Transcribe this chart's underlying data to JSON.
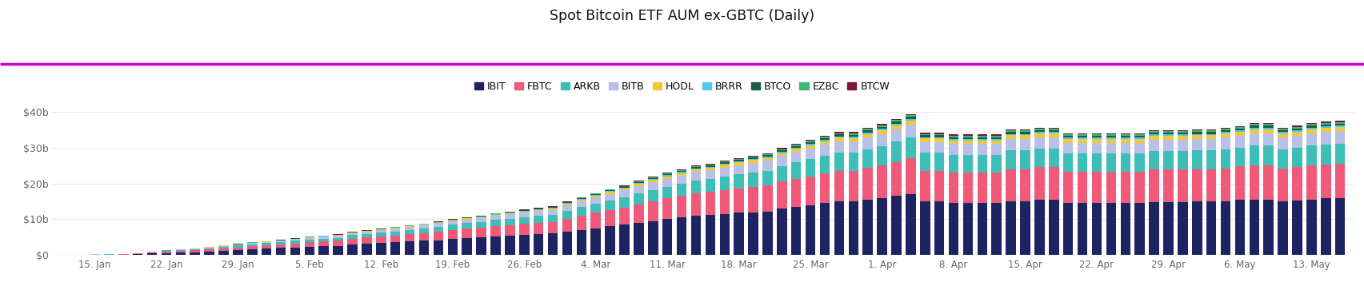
{
  "title": "Spot Bitcoin ETF AUM ex-GBTC (Daily)",
  "background_color": "#ffffff",
  "magenta_line_color": "#cc00cc",
  "series": [
    "IBIT",
    "FBTC",
    "ARKB",
    "BITB",
    "HODL",
    "BRRR",
    "BTCO",
    "EZBC",
    "BTCW"
  ],
  "colors": [
    "#1e2461",
    "#f05a78",
    "#3dbfb8",
    "#b8bfe8",
    "#f0c840",
    "#50c8e8",
    "#1a6040",
    "#40b878",
    "#7a1830"
  ],
  "x_tick_positions": [
    2,
    7,
    12,
    17,
    22,
    27,
    32,
    37,
    42,
    47,
    52,
    57,
    62,
    67,
    72,
    77,
    82,
    87
  ],
  "x_labels": [
    "15. Jan",
    "22. Jan",
    "29. Jan",
    "5. Feb",
    "12. Feb",
    "19. Feb",
    "26. Feb",
    "4. Mar",
    "11. Mar",
    "18. Mar",
    "25. Mar",
    "1. Apr",
    "8. Apr",
    "15. Apr",
    "22. Apr",
    "29. Apr",
    "6. May",
    "13. May"
  ],
  "n_bars": 90,
  "data": {
    "IBIT": [
      0.05,
      0.08,
      0.1,
      0.12,
      0.15,
      0.3,
      0.45,
      0.6,
      0.75,
      0.85,
      1.0,
      1.2,
      1.4,
      1.6,
      1.8,
      2.0,
      2.2,
      2.4,
      2.5,
      2.6,
      3.0,
      3.2,
      3.4,
      3.6,
      3.8,
      4.0,
      4.2,
      4.5,
      4.8,
      5.0,
      5.2,
      5.4,
      5.6,
      5.8,
      6.0,
      6.5,
      7.0,
      7.5,
      8.0,
      8.5,
      9.0,
      9.5,
      10.0,
      10.5,
      11.0,
      11.2,
      11.5,
      11.8,
      12.0,
      12.2,
      13.0,
      13.5,
      14.0,
      14.5,
      15.0,
      15.0,
      15.5,
      16.0,
      16.5,
      17.0,
      15.0,
      15.0,
      14.5,
      14.5,
      14.5,
      14.5,
      15.0,
      15.0,
      15.5,
      15.5,
      14.5,
      14.5,
      14.5,
      14.5,
      14.5,
      14.5,
      14.8,
      14.8,
      14.8,
      15.0,
      15.0,
      15.0,
      15.5,
      15.5,
      15.5,
      15.0,
      15.2,
      15.5,
      15.8,
      16.0
    ],
    "FBTC": [
      0.02,
      0.04,
      0.06,
      0.08,
      0.1,
      0.15,
      0.25,
      0.35,
      0.45,
      0.5,
      0.6,
      0.7,
      0.8,
      0.9,
      1.0,
      1.0,
      1.1,
      1.2,
      1.3,
      1.4,
      1.6,
      1.7,
      1.8,
      1.9,
      2.0,
      2.2,
      2.3,
      2.5,
      2.6,
      2.7,
      2.9,
      3.0,
      3.1,
      3.2,
      3.3,
      3.7,
      4.0,
      4.3,
      4.5,
      4.8,
      5.2,
      5.5,
      5.8,
      6.0,
      6.3,
      6.4,
      6.6,
      6.8,
      7.0,
      7.2,
      7.5,
      7.8,
      8.0,
      8.3,
      8.5,
      8.5,
      8.8,
      9.0,
      9.5,
      10.0,
      8.5,
      8.5,
      8.5,
      8.5,
      8.5,
      8.5,
      9.0,
      9.0,
      9.0,
      9.0,
      8.8,
      8.8,
      8.8,
      8.8,
      8.8,
      8.8,
      9.0,
      9.0,
      9.0,
      9.0,
      9.0,
      9.2,
      9.2,
      9.5,
      9.5,
      9.2,
      9.3,
      9.5,
      9.5,
      9.5
    ],
    "ARKB": [
      0.01,
      0.02,
      0.03,
      0.04,
      0.05,
      0.08,
      0.12,
      0.18,
      0.22,
      0.28,
      0.35,
      0.42,
      0.48,
      0.55,
      0.6,
      0.65,
      0.72,
      0.78,
      0.82,
      0.88,
      1.0,
      1.05,
      1.1,
      1.15,
      1.2,
      1.3,
      1.35,
      1.45,
      1.5,
      1.55,
      1.7,
      1.8,
      1.9,
      1.95,
      2.0,
      2.2,
      2.4,
      2.6,
      2.8,
      2.9,
      3.1,
      3.2,
      3.3,
      3.4,
      3.5,
      3.6,
      3.8,
      3.9,
      4.0,
      4.1,
      4.3,
      4.5,
      4.7,
      4.9,
      5.0,
      5.0,
      5.2,
      5.4,
      5.6,
      5.8,
      5.0,
      5.0,
      5.0,
      5.0,
      5.0,
      5.0,
      5.2,
      5.2,
      5.2,
      5.2,
      5.0,
      5.0,
      5.0,
      5.0,
      5.0,
      5.0,
      5.2,
      5.2,
      5.2,
      5.2,
      5.2,
      5.3,
      5.3,
      5.5,
      5.5,
      5.3,
      5.4,
      5.5,
      5.5,
      5.5
    ],
    "BITB": [
      0.01,
      0.02,
      0.02,
      0.03,
      0.04,
      0.05,
      0.08,
      0.12,
      0.15,
      0.18,
      0.22,
      0.26,
      0.3,
      0.33,
      0.36,
      0.4,
      0.45,
      0.48,
      0.52,
      0.55,
      0.6,
      0.65,
      0.7,
      0.75,
      0.8,
      0.85,
      0.92,
      0.98,
      1.05,
      1.1,
      1.15,
      1.2,
      1.25,
      1.3,
      1.35,
      1.5,
      1.6,
      1.7,
      1.8,
      1.9,
      2.0,
      2.1,
      2.2,
      2.3,
      2.4,
      2.4,
      2.5,
      2.6,
      2.7,
      2.8,
      2.8,
      2.9,
      3.0,
      3.1,
      3.2,
      3.2,
      3.3,
      3.4,
      3.5,
      3.6,
      3.0,
      3.0,
      3.0,
      3.0,
      3.0,
      3.0,
      3.2,
      3.2,
      3.2,
      3.2,
      3.0,
      3.0,
      3.0,
      3.0,
      3.0,
      3.0,
      3.2,
      3.2,
      3.2,
      3.2,
      3.2,
      3.3,
      3.3,
      3.5,
      3.5,
      3.3,
      3.4,
      3.5,
      3.5,
      3.5
    ],
    "HODL": [
      0.005,
      0.008,
      0.01,
      0.012,
      0.015,
      0.02,
      0.03,
      0.04,
      0.05,
      0.06,
      0.07,
      0.08,
      0.09,
      0.1,
      0.11,
      0.12,
      0.13,
      0.14,
      0.15,
      0.16,
      0.17,
      0.18,
      0.19,
      0.2,
      0.21,
      0.23,
      0.25,
      0.27,
      0.29,
      0.3,
      0.32,
      0.34,
      0.36,
      0.38,
      0.4,
      0.43,
      0.46,
      0.48,
      0.5,
      0.52,
      0.58,
      0.62,
      0.66,
      0.7,
      0.72,
      0.74,
      0.76,
      0.78,
      0.8,
      0.82,
      0.85,
      0.88,
      0.92,
      0.96,
      1.0,
      0.98,
      1.0,
      1.02,
      1.04,
      1.06,
      1.0,
      1.0,
      1.0,
      1.0,
      1.0,
      1.0,
      1.0,
      1.0,
      1.0,
      1.0,
      1.0,
      1.0,
      1.0,
      1.0,
      1.0,
      1.0,
      1.0,
      1.0,
      1.0,
      1.0,
      1.0,
      1.05,
      1.05,
      1.1,
      1.1,
      1.05,
      1.05,
      1.1,
      1.1,
      1.1
    ],
    "BRRR": [
      0.002,
      0.003,
      0.004,
      0.005,
      0.006,
      0.008,
      0.01,
      0.015,
      0.018,
      0.02,
      0.022,
      0.025,
      0.028,
      0.03,
      0.035,
      0.038,
      0.042,
      0.046,
      0.05,
      0.055,
      0.06,
      0.065,
      0.07,
      0.075,
      0.08,
      0.085,
      0.095,
      0.1,
      0.11,
      0.12,
      0.13,
      0.14,
      0.15,
      0.16,
      0.17,
      0.18,
      0.2,
      0.22,
      0.24,
      0.25,
      0.26,
      0.28,
      0.29,
      0.3,
      0.31,
      0.32,
      0.33,
      0.34,
      0.35,
      0.36,
      0.36,
      0.37,
      0.38,
      0.39,
      0.4,
      0.4,
      0.42,
      0.44,
      0.46,
      0.48,
      0.4,
      0.4,
      0.4,
      0.4,
      0.4,
      0.4,
      0.4,
      0.4,
      0.4,
      0.4,
      0.4,
      0.4,
      0.4,
      0.4,
      0.4,
      0.4,
      0.4,
      0.4,
      0.4,
      0.4,
      0.4,
      0.42,
      0.42,
      0.45,
      0.45,
      0.42,
      0.43,
      0.45,
      0.45,
      0.45
    ],
    "BTCO": [
      0.002,
      0.003,
      0.004,
      0.005,
      0.006,
      0.008,
      0.01,
      0.015,
      0.018,
      0.02,
      0.022,
      0.025,
      0.028,
      0.03,
      0.035,
      0.038,
      0.042,
      0.046,
      0.05,
      0.055,
      0.065,
      0.07,
      0.075,
      0.08,
      0.09,
      0.095,
      0.1,
      0.11,
      0.12,
      0.13,
      0.14,
      0.15,
      0.16,
      0.17,
      0.18,
      0.2,
      0.22,
      0.23,
      0.25,
      0.26,
      0.28,
      0.3,
      0.32,
      0.33,
      0.35,
      0.36,
      0.37,
      0.38,
      0.4,
      0.42,
      0.43,
      0.44,
      0.46,
      0.48,
      0.5,
      0.5,
      0.52,
      0.54,
      0.56,
      0.58,
      0.5,
      0.5,
      0.5,
      0.5,
      0.5,
      0.5,
      0.5,
      0.5,
      0.5,
      0.5,
      0.5,
      0.5,
      0.5,
      0.5,
      0.5,
      0.5,
      0.5,
      0.5,
      0.5,
      0.5,
      0.5,
      0.52,
      0.52,
      0.55,
      0.55,
      0.52,
      0.53,
      0.55,
      0.55,
      0.55
    ],
    "EZBC": [
      0.001,
      0.002,
      0.003,
      0.004,
      0.005,
      0.006,
      0.008,
      0.01,
      0.012,
      0.015,
      0.018,
      0.02,
      0.022,
      0.025,
      0.028,
      0.03,
      0.033,
      0.036,
      0.04,
      0.044,
      0.048,
      0.052,
      0.056,
      0.06,
      0.065,
      0.07,
      0.075,
      0.082,
      0.088,
      0.095,
      0.1,
      0.11,
      0.12,
      0.13,
      0.14,
      0.15,
      0.16,
      0.17,
      0.18,
      0.2,
      0.21,
      0.22,
      0.23,
      0.24,
      0.25,
      0.26,
      0.27,
      0.28,
      0.29,
      0.3,
      0.32,
      0.34,
      0.36,
      0.38,
      0.4,
      0.4,
      0.42,
      0.44,
      0.46,
      0.48,
      0.4,
      0.4,
      0.4,
      0.4,
      0.4,
      0.4,
      0.4,
      0.4,
      0.4,
      0.4,
      0.4,
      0.4,
      0.4,
      0.4,
      0.4,
      0.4,
      0.4,
      0.4,
      0.4,
      0.4,
      0.4,
      0.42,
      0.42,
      0.45,
      0.45,
      0.42,
      0.43,
      0.45,
      0.45,
      0.45
    ],
    "BTCW": [
      0.001,
      0.002,
      0.002,
      0.003,
      0.004,
      0.005,
      0.006,
      0.008,
      0.01,
      0.012,
      0.014,
      0.016,
      0.018,
      0.02,
      0.022,
      0.024,
      0.026,
      0.028,
      0.03,
      0.033,
      0.035,
      0.038,
      0.04,
      0.043,
      0.046,
      0.05,
      0.054,
      0.058,
      0.062,
      0.066,
      0.07,
      0.075,
      0.08,
      0.085,
      0.09,
      0.1,
      0.11,
      0.12,
      0.13,
      0.14,
      0.15,
      0.16,
      0.17,
      0.18,
      0.19,
      0.2,
      0.21,
      0.22,
      0.23,
      0.24,
      0.25,
      0.26,
      0.27,
      0.28,
      0.3,
      0.3,
      0.31,
      0.32,
      0.33,
      0.35,
      0.3,
      0.3,
      0.3,
      0.3,
      0.3,
      0.3,
      0.3,
      0.3,
      0.3,
      0.3,
      0.3,
      0.3,
      0.3,
      0.3,
      0.3,
      0.3,
      0.3,
      0.3,
      0.3,
      0.3,
      0.3,
      0.32,
      0.32,
      0.35,
      0.35,
      0.32,
      0.33,
      0.35,
      0.35,
      0.35
    ]
  },
  "ylim": [
    0,
    42
  ],
  "yticks": [
    0,
    10,
    20,
    30,
    40
  ],
  "ytick_labels": [
    "$0",
    "$10b",
    "$20b",
    "$30b",
    "$40b"
  ],
  "bar_width": 0.7
}
